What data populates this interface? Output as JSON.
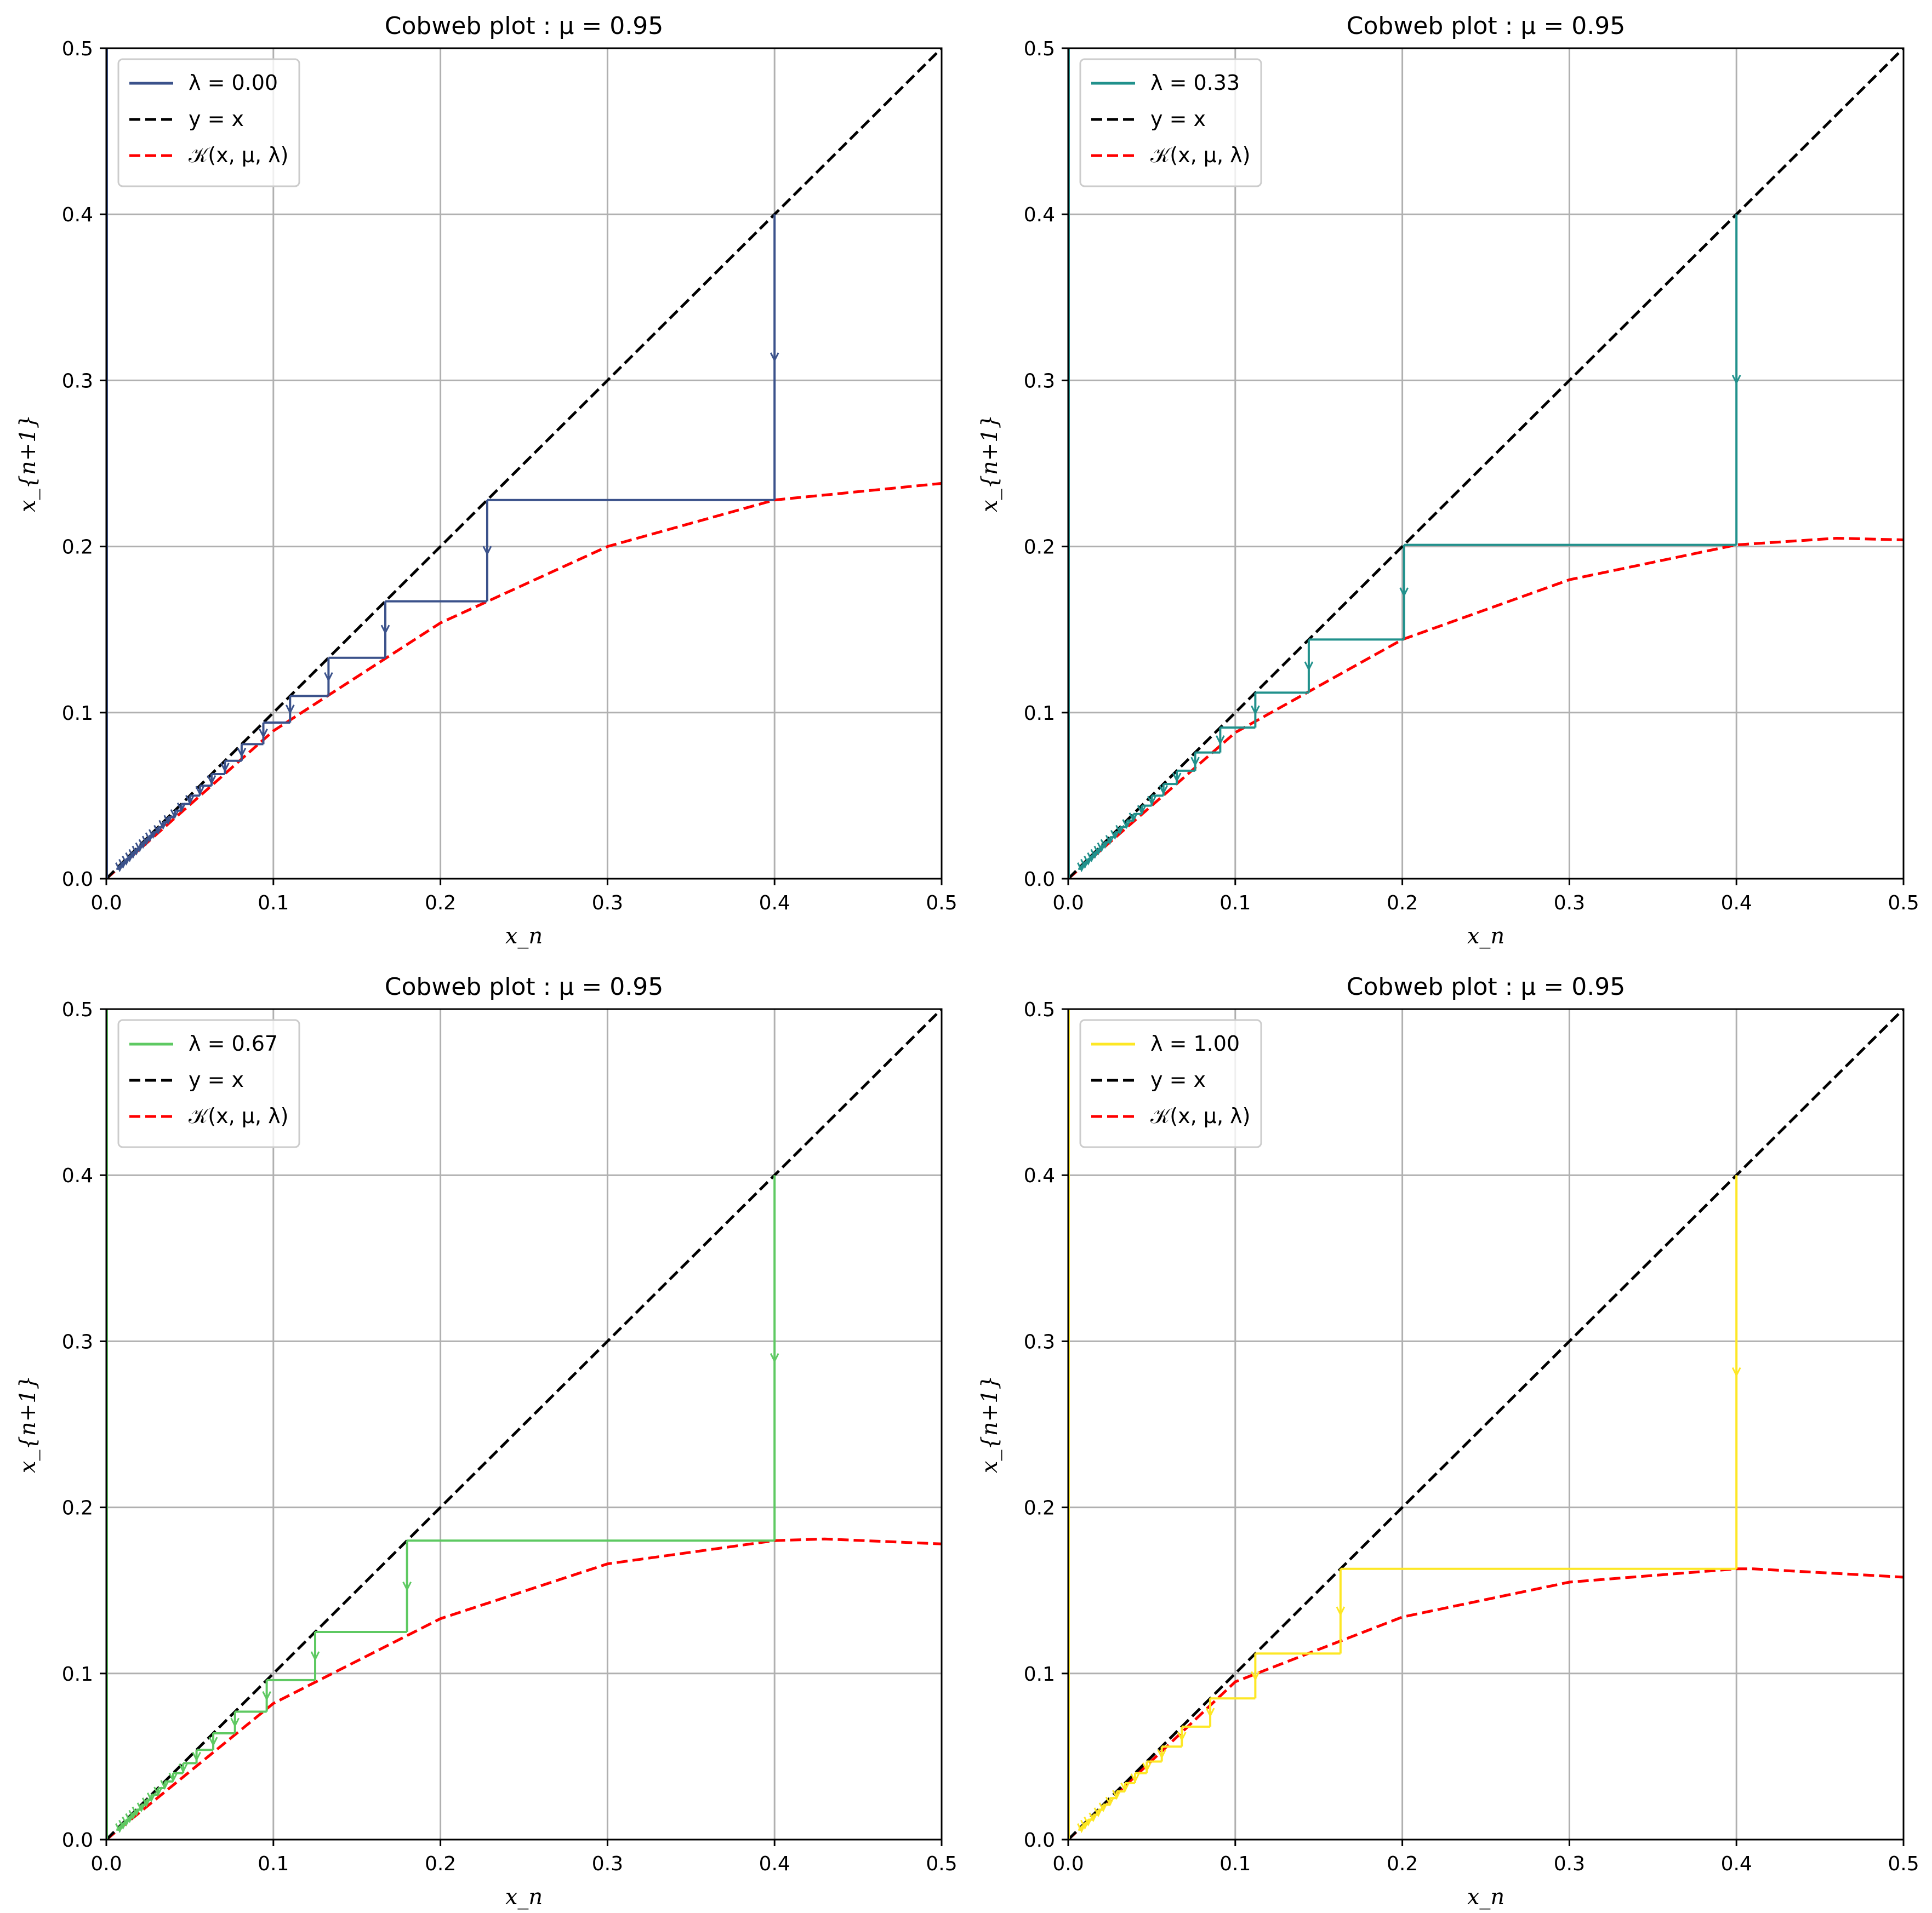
{
  "chart_data": [
    {
      "type": "line",
      "title": "Cobweb plot : μ = 0.95",
      "xlabel": "x_n",
      "ylabel": "x_{n+1}",
      "xlim": [
        0,
        0.5
      ],
      "ylim": [
        0,
        0.5
      ],
      "xticks": [
        "0.0",
        "0.1",
        "0.2",
        "0.3",
        "0.4",
        "0.5"
      ],
      "yticks": [
        "0.0",
        "0.1",
        "0.2",
        "0.3",
        "0.4",
        "0.5"
      ],
      "grid": true,
      "legend_position": "top-left",
      "legend": [
        "λ = 0.00",
        "y = x",
        "𝒦(x, μ, λ)"
      ],
      "color": "#3b528b",
      "x0": 0.4,
      "map_curve": [
        [
          0,
          0
        ],
        [
          0.1,
          0.089
        ],
        [
          0.2,
          0.154
        ],
        [
          0.3,
          0.2
        ],
        [
          0.4,
          0.228
        ],
        [
          0.5,
          0.238
        ]
      ],
      "cobweb_iterates": [
        0.4,
        0.228,
        0.167,
        0.133,
        0.11,
        0.094,
        0.081,
        0.071,
        0.063,
        0.056,
        0.05,
        0.045,
        0.041,
        0.037,
        0.034,
        0.031,
        0.028,
        0.026,
        0.024,
        0.022,
        0.02,
        0.018,
        0.016,
        0.014,
        0.012,
        0.01,
        0.008,
        0.006
      ]
    },
    {
      "type": "line",
      "title": "Cobweb plot : μ = 0.95",
      "xlabel": "x_n",
      "ylabel": "x_{n+1}",
      "xlim": [
        0,
        0.5
      ],
      "ylim": [
        0,
        0.5
      ],
      "xticks": [
        "0.0",
        "0.1",
        "0.2",
        "0.3",
        "0.4",
        "0.5"
      ],
      "yticks": [
        "0.0",
        "0.1",
        "0.2",
        "0.3",
        "0.4",
        "0.5"
      ],
      "grid": true,
      "legend_position": "top-left",
      "legend": [
        "λ = 0.33",
        "y = x",
        "𝒦(x, μ, λ)"
      ],
      "color": "#21918c",
      "x0": 0.4,
      "map_curve": [
        [
          0,
          0
        ],
        [
          0.1,
          0.088
        ],
        [
          0.2,
          0.144
        ],
        [
          0.3,
          0.18
        ],
        [
          0.4,
          0.201
        ],
        [
          0.46,
          0.205
        ],
        [
          0.5,
          0.204
        ]
      ],
      "cobweb_iterates": [
        0.4,
        0.201,
        0.144,
        0.112,
        0.091,
        0.076,
        0.065,
        0.057,
        0.05,
        0.044,
        0.039,
        0.035,
        0.031,
        0.028,
        0.025,
        0.022,
        0.02,
        0.018,
        0.016,
        0.014,
        0.012,
        0.01,
        0.008,
        0.006
      ]
    },
    {
      "type": "line",
      "title": "Cobweb plot : μ = 0.95",
      "xlabel": "x_n",
      "ylabel": "x_{n+1}",
      "xlim": [
        0,
        0.5
      ],
      "ylim": [
        0,
        0.5
      ],
      "xticks": [
        "0.0",
        "0.1",
        "0.2",
        "0.3",
        "0.4",
        "0.5"
      ],
      "yticks": [
        "0.0",
        "0.1",
        "0.2",
        "0.3",
        "0.4",
        "0.5"
      ],
      "grid": true,
      "legend_position": "top-left",
      "legend": [
        "λ = 0.67",
        "y = x",
        "𝒦(x, μ, λ)"
      ],
      "color": "#5ec962",
      "x0": 0.4,
      "map_curve": [
        [
          0,
          0
        ],
        [
          0.1,
          0.082
        ],
        [
          0.2,
          0.133
        ],
        [
          0.3,
          0.166
        ],
        [
          0.4,
          0.18
        ],
        [
          0.43,
          0.181
        ],
        [
          0.5,
          0.178
        ]
      ],
      "cobweb_iterates": [
        0.4,
        0.18,
        0.125,
        0.096,
        0.077,
        0.064,
        0.054,
        0.046,
        0.04,
        0.035,
        0.031,
        0.027,
        0.024,
        0.021,
        0.018,
        0.016,
        0.014,
        0.012,
        0.01,
        0.008,
        0.006
      ]
    },
    {
      "type": "line",
      "title": "Cobweb plot : μ = 0.95",
      "xlabel": "x_n",
      "ylabel": "x_{n+1}",
      "xlim": [
        0,
        0.5
      ],
      "ylim": [
        0,
        0.5
      ],
      "xticks": [
        "0.0",
        "0.1",
        "0.2",
        "0.3",
        "0.4",
        "0.5"
      ],
      "yticks": [
        "0.0",
        "0.1",
        "0.2",
        "0.3",
        "0.4",
        "0.5"
      ],
      "grid": true,
      "legend_position": "top-left",
      "legend": [
        "λ = 1.00",
        "y = x",
        "𝒦(x, μ, λ)"
      ],
      "color": "#fde725",
      "x0": 0.4,
      "map_curve": [
        [
          0,
          0
        ],
        [
          0.1,
          0.095
        ],
        [
          0.2,
          0.134
        ],
        [
          0.3,
          0.155
        ],
        [
          0.4,
          0.163
        ],
        [
          0.41,
          0.163
        ],
        [
          0.5,
          0.158
        ]
      ],
      "cobweb_iterates": [
        0.4,
        0.163,
        0.112,
        0.085,
        0.068,
        0.056,
        0.047,
        0.04,
        0.034,
        0.029,
        0.025,
        0.021,
        0.018,
        0.015,
        0.012,
        0.01,
        0.008,
        0.006
      ]
    }
  ],
  "colors": {
    "identity_line": "#000000",
    "map_curve": "#ff0000",
    "grid": "#b0b0b0"
  }
}
